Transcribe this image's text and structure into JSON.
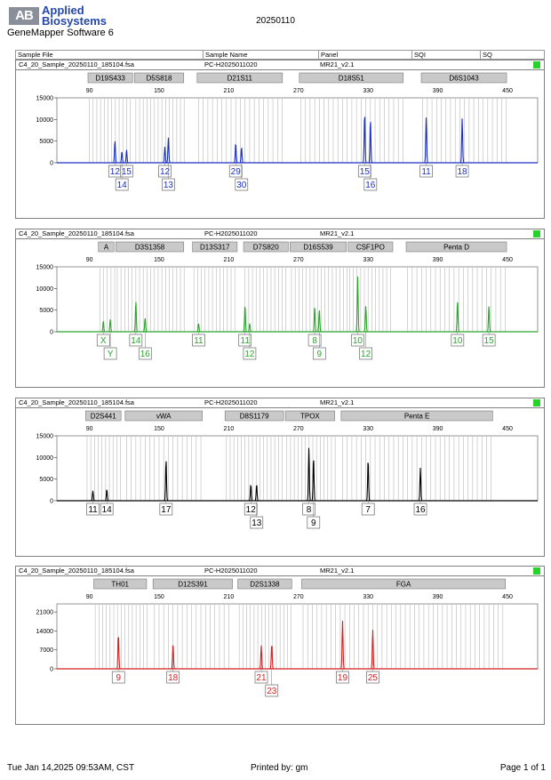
{
  "header": {
    "logo_mark": "AB",
    "company_line1": "Applied",
    "company_line2": "Biosystems",
    "software": "GeneMapper Software 6",
    "title": "20250110"
  },
  "columns": {
    "sample_file": "Sample File",
    "sample_name": "Sample Name",
    "panel": "Panel",
    "sqi": "SQI",
    "sq": "SQ"
  },
  "footer": {
    "datetime": "Tue Jan 14,2025 09:53AM, CST",
    "printed_by": "Printed by: gm",
    "page": "Page 1 of 1"
  },
  "colors": {
    "blue": "#1a2fc0",
    "green": "#2aa52a",
    "black": "#000000",
    "red": "#d42020",
    "status": "#2bd12b",
    "marker": "#b8b8b8"
  },
  "x_axis_ticks": [
    "90",
    "150",
    "210",
    "270",
    "330",
    "390",
    "450"
  ],
  "panels": [
    {
      "sample_file": "C4_20_Sample_20250110_185104.fsa",
      "sample_name": "PC-H2025011020",
      "panel": "MR21_v2.1",
      "dye": "blue",
      "y_ticks": [
        "15000",
        "10000",
        "5000",
        "0"
      ],
      "y_max": 15000,
      "loci": [
        {
          "name": "D19S433",
          "start": 88,
          "end": 128
        },
        {
          "name": "D5S818",
          "start": 128,
          "end": 172
        },
        {
          "name": "D21S11",
          "start": 182,
          "end": 257
        },
        {
          "name": "D18S51",
          "start": 270,
          "end": 361
        },
        {
          "name": "D6S1043",
          "start": 375,
          "end": 450
        }
      ],
      "peaks": [
        {
          "size": 112,
          "height": 5200
        },
        {
          "size": 118,
          "height": 2600
        },
        {
          "size": 122,
          "height": 3000
        },
        {
          "size": 155,
          "height": 3700
        },
        {
          "size": 158,
          "height": 5800
        },
        {
          "size": 216,
          "height": 4600
        },
        {
          "size": 221,
          "height": 3600
        },
        {
          "size": 327,
          "height": 11500
        },
        {
          "size": 332,
          "height": 10000
        },
        {
          "size": 380,
          "height": 10500
        },
        {
          "size": 411,
          "height": 10300
        }
      ],
      "alleles_row1": [
        {
          "label": "12",
          "size": 112
        },
        {
          "label": "15",
          "size": 122
        },
        {
          "label": "12",
          "size": 155
        },
        {
          "label": "29",
          "size": 216
        },
        {
          "label": "15",
          "size": 327
        },
        {
          "label": "11",
          "size": 380
        },
        {
          "label": "18",
          "size": 411
        }
      ],
      "alleles_row2": [
        {
          "label": "14",
          "size": 118
        },
        {
          "label": "13",
          "size": 158
        },
        {
          "label": "30",
          "size": 221
        },
        {
          "label": "16",
          "size": 332
        }
      ]
    },
    {
      "sample_file": "C4_20_Sample_20250110_185104.fsa",
      "sample_name": "PC-H2025011020",
      "panel": "MR21_v2.1",
      "dye": "green",
      "y_ticks": [
        "15000",
        "10000",
        "5000",
        "0"
      ],
      "y_max": 15000,
      "loci": [
        {
          "name": "A",
          "start": 97,
          "end": 112
        },
        {
          "name": "D3S1358",
          "start": 112,
          "end": 172
        },
        {
          "name": "D13S317",
          "start": 178,
          "end": 218
        },
        {
          "name": "D7S820",
          "start": 222,
          "end": 262
        },
        {
          "name": "D16S539",
          "start": 262,
          "end": 312
        },
        {
          "name": "CSF1PO",
          "start": 312,
          "end": 352
        },
        {
          "name": "Penta D",
          "start": 362,
          "end": 450
        }
      ],
      "peaks": [
        {
          "size": 102,
          "height": 2500
        },
        {
          "size": 108,
          "height": 2900
        },
        {
          "size": 130,
          "height": 7100
        },
        {
          "size": 138,
          "height": 3300
        },
        {
          "size": 184,
          "height": 1900
        },
        {
          "size": 224,
          "height": 6200
        },
        {
          "size": 228,
          "height": 1900
        },
        {
          "size": 284,
          "height": 5600
        },
        {
          "size": 288,
          "height": 5200
        },
        {
          "size": 321,
          "height": 12800
        },
        {
          "size": 328,
          "height": 6000
        },
        {
          "size": 407,
          "height": 7200
        },
        {
          "size": 434,
          "height": 6000
        }
      ],
      "alleles_row1": [
        {
          "label": "X",
          "size": 102
        },
        {
          "label": "14",
          "size": 130
        },
        {
          "label": "11",
          "size": 184
        },
        {
          "label": "11",
          "size": 224
        },
        {
          "label": "8",
          "size": 284
        },
        {
          "label": "10",
          "size": 321
        },
        {
          "label": "10",
          "size": 407
        },
        {
          "label": "15",
          "size": 434
        }
      ],
      "alleles_row2": [
        {
          "label": "Y",
          "size": 108
        },
        {
          "label": "16",
          "size": 138
        },
        {
          "label": "12",
          "size": 228
        },
        {
          "label": "9",
          "size": 288
        },
        {
          "label": "12",
          "size": 328
        }
      ]
    },
    {
      "sample_file": "C4_20_Sample_20250110_185104.fsa",
      "sample_name": "PC-H2025011020",
      "panel": "MR21_v2.1",
      "dye": "black",
      "y_ticks": [
        "15000",
        "10000",
        "5000",
        "0"
      ],
      "y_max": 15000,
      "loci": [
        {
          "name": "D2S441",
          "start": 86,
          "end": 118
        },
        {
          "name": "vWA",
          "start": 120,
          "end": 188
        },
        {
          "name": "D8S1179",
          "start": 206,
          "end": 258
        },
        {
          "name": "TPOX",
          "start": 258,
          "end": 302
        },
        {
          "name": "Penta E",
          "start": 306,
          "end": 438
        }
      ],
      "peaks": [
        {
          "size": 93,
          "height": 2300
        },
        {
          "size": 105,
          "height": 2700
        },
        {
          "size": 156,
          "height": 9600
        },
        {
          "size": 229,
          "height": 3800
        },
        {
          "size": 234,
          "height": 3800
        },
        {
          "size": 279,
          "height": 12300
        },
        {
          "size": 283,
          "height": 10100
        },
        {
          "size": 330,
          "height": 9600
        },
        {
          "size": 375,
          "height": 7600
        }
      ],
      "alleles_row1": [
        {
          "label": "11",
          "size": 93
        },
        {
          "label": "14",
          "size": 105
        },
        {
          "label": "17",
          "size": 156
        },
        {
          "label": "12",
          "size": 229
        },
        {
          "label": "8",
          "size": 279
        },
        {
          "label": "7",
          "size": 330
        },
        {
          "label": "16",
          "size": 375
        }
      ],
      "alleles_row2": [
        {
          "label": "13",
          "size": 234
        },
        {
          "label": "9",
          "size": 283
        }
      ]
    },
    {
      "sample_file": "C4_20_Sample_20250110_185104.fsa",
      "sample_name": "PC-H2025011020",
      "panel": "MR21_v2.1",
      "dye": "red",
      "y_ticks": [
        "21000",
        "14000",
        "7000",
        "0"
      ],
      "y_max": 24000,
      "loci": [
        {
          "name": "TH01",
          "start": 93,
          "end": 140
        },
        {
          "name": "D12S391",
          "start": 144,
          "end": 214
        },
        {
          "name": "D2S1338",
          "start": 217,
          "end": 265
        },
        {
          "name": "FGA",
          "start": 272,
          "end": 449
        }
      ],
      "peaks": [
        {
          "size": 115,
          "height": 12800
        },
        {
          "size": 162,
          "height": 9200
        },
        {
          "size": 238,
          "height": 8600
        },
        {
          "size": 247,
          "height": 9300
        },
        {
          "size": 308,
          "height": 17800
        },
        {
          "size": 334,
          "height": 14500
        }
      ],
      "alleles_row1": [
        {
          "label": "9",
          "size": 115
        },
        {
          "label": "18",
          "size": 162
        },
        {
          "label": "21",
          "size": 238
        },
        {
          "label": "19",
          "size": 308
        },
        {
          "label": "25",
          "size": 334
        }
      ],
      "alleles_row2": [
        {
          "label": "23",
          "size": 247
        }
      ]
    }
  ]
}
